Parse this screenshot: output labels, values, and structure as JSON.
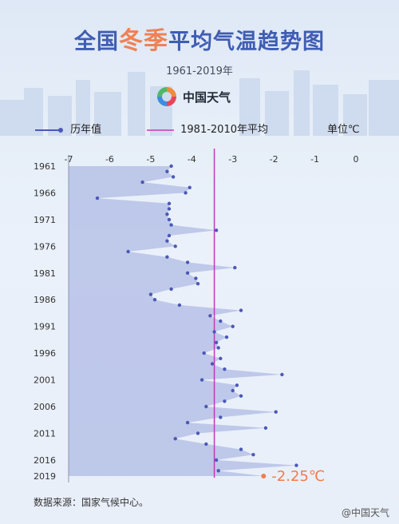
{
  "header": {
    "title_part1": "全国",
    "title_highlight": "冬季",
    "title_part2": "平均气温趋势图",
    "subtitle": "1961-2019年",
    "brand": "中国天气"
  },
  "legend": {
    "history_label": "历年值",
    "normal_label": "1981-2010年平均",
    "unit_label": "单位℃"
  },
  "annotation": {
    "last_value_label": "-2.25℃"
  },
  "footer": {
    "source": "数据来源：国家气候中心。",
    "watermark": "@中国天气"
  },
  "colors": {
    "series": "#4b59b5",
    "fill": "#9aa7dc",
    "normal_line": "#c23ab8",
    "highlight": "#f07c4a",
    "title_blue": "#3f5db3",
    "title_orange": "#ee8255"
  },
  "chart_data": {
    "type": "area",
    "orientation": "horizontal",
    "xlim": [
      -7,
      0
    ],
    "x_ticks": [
      -7,
      -6,
      -5,
      -4,
      -3,
      -2,
      -1,
      0
    ],
    "y_tick_labels": [
      "1961",
      "1966",
      "1971",
      "1976",
      "1981",
      "1986",
      "1991",
      "1996",
      "2001",
      "2006",
      "2011",
      "2016",
      "2019"
    ],
    "normal_value": -3.45,
    "series": [
      {
        "name": "历年值",
        "years": [
          1961,
          1962,
          1963,
          1964,
          1965,
          1966,
          1967,
          1968,
          1969,
          1970,
          1971,
          1972,
          1973,
          1974,
          1975,
          1976,
          1977,
          1978,
          1979,
          1980,
          1981,
          1982,
          1983,
          1984,
          1985,
          1986,
          1987,
          1988,
          1989,
          1990,
          1991,
          1992,
          1993,
          1994,
          1995,
          1996,
          1997,
          1998,
          1999,
          2000,
          2001,
          2002,
          2003,
          2004,
          2005,
          2006,
          2007,
          2008,
          2009,
          2010,
          2011,
          2012,
          2013,
          2014,
          2015,
          2016,
          2017,
          2018,
          2019
        ],
        "values": [
          -4.5,
          -4.6,
          -4.45,
          -5.2,
          -4.05,
          -4.15,
          -6.3,
          -4.55,
          -4.55,
          -4.6,
          -4.55,
          -4.5,
          -3.4,
          -4.55,
          -4.6,
          -4.4,
          -5.55,
          -4.6,
          -4.1,
          -2.95,
          -4.1,
          -3.9,
          -3.85,
          -4.5,
          -5.0,
          -4.9,
          -4.3,
          -2.8,
          -3.55,
          -3.3,
          -3.0,
          -3.45,
          -3.15,
          -3.4,
          -3.35,
          -3.7,
          -3.3,
          -3.5,
          -3.2,
          -1.8,
          -3.75,
          -2.9,
          -3.0,
          -2.8,
          -3.2,
          -3.65,
          -1.95,
          -3.3,
          -4.1,
          -2.2,
          -3.85,
          -4.4,
          -3.65,
          -2.8,
          -2.5,
          -3.4,
          -1.45,
          -3.35,
          -2.25
        ]
      }
    ]
  }
}
